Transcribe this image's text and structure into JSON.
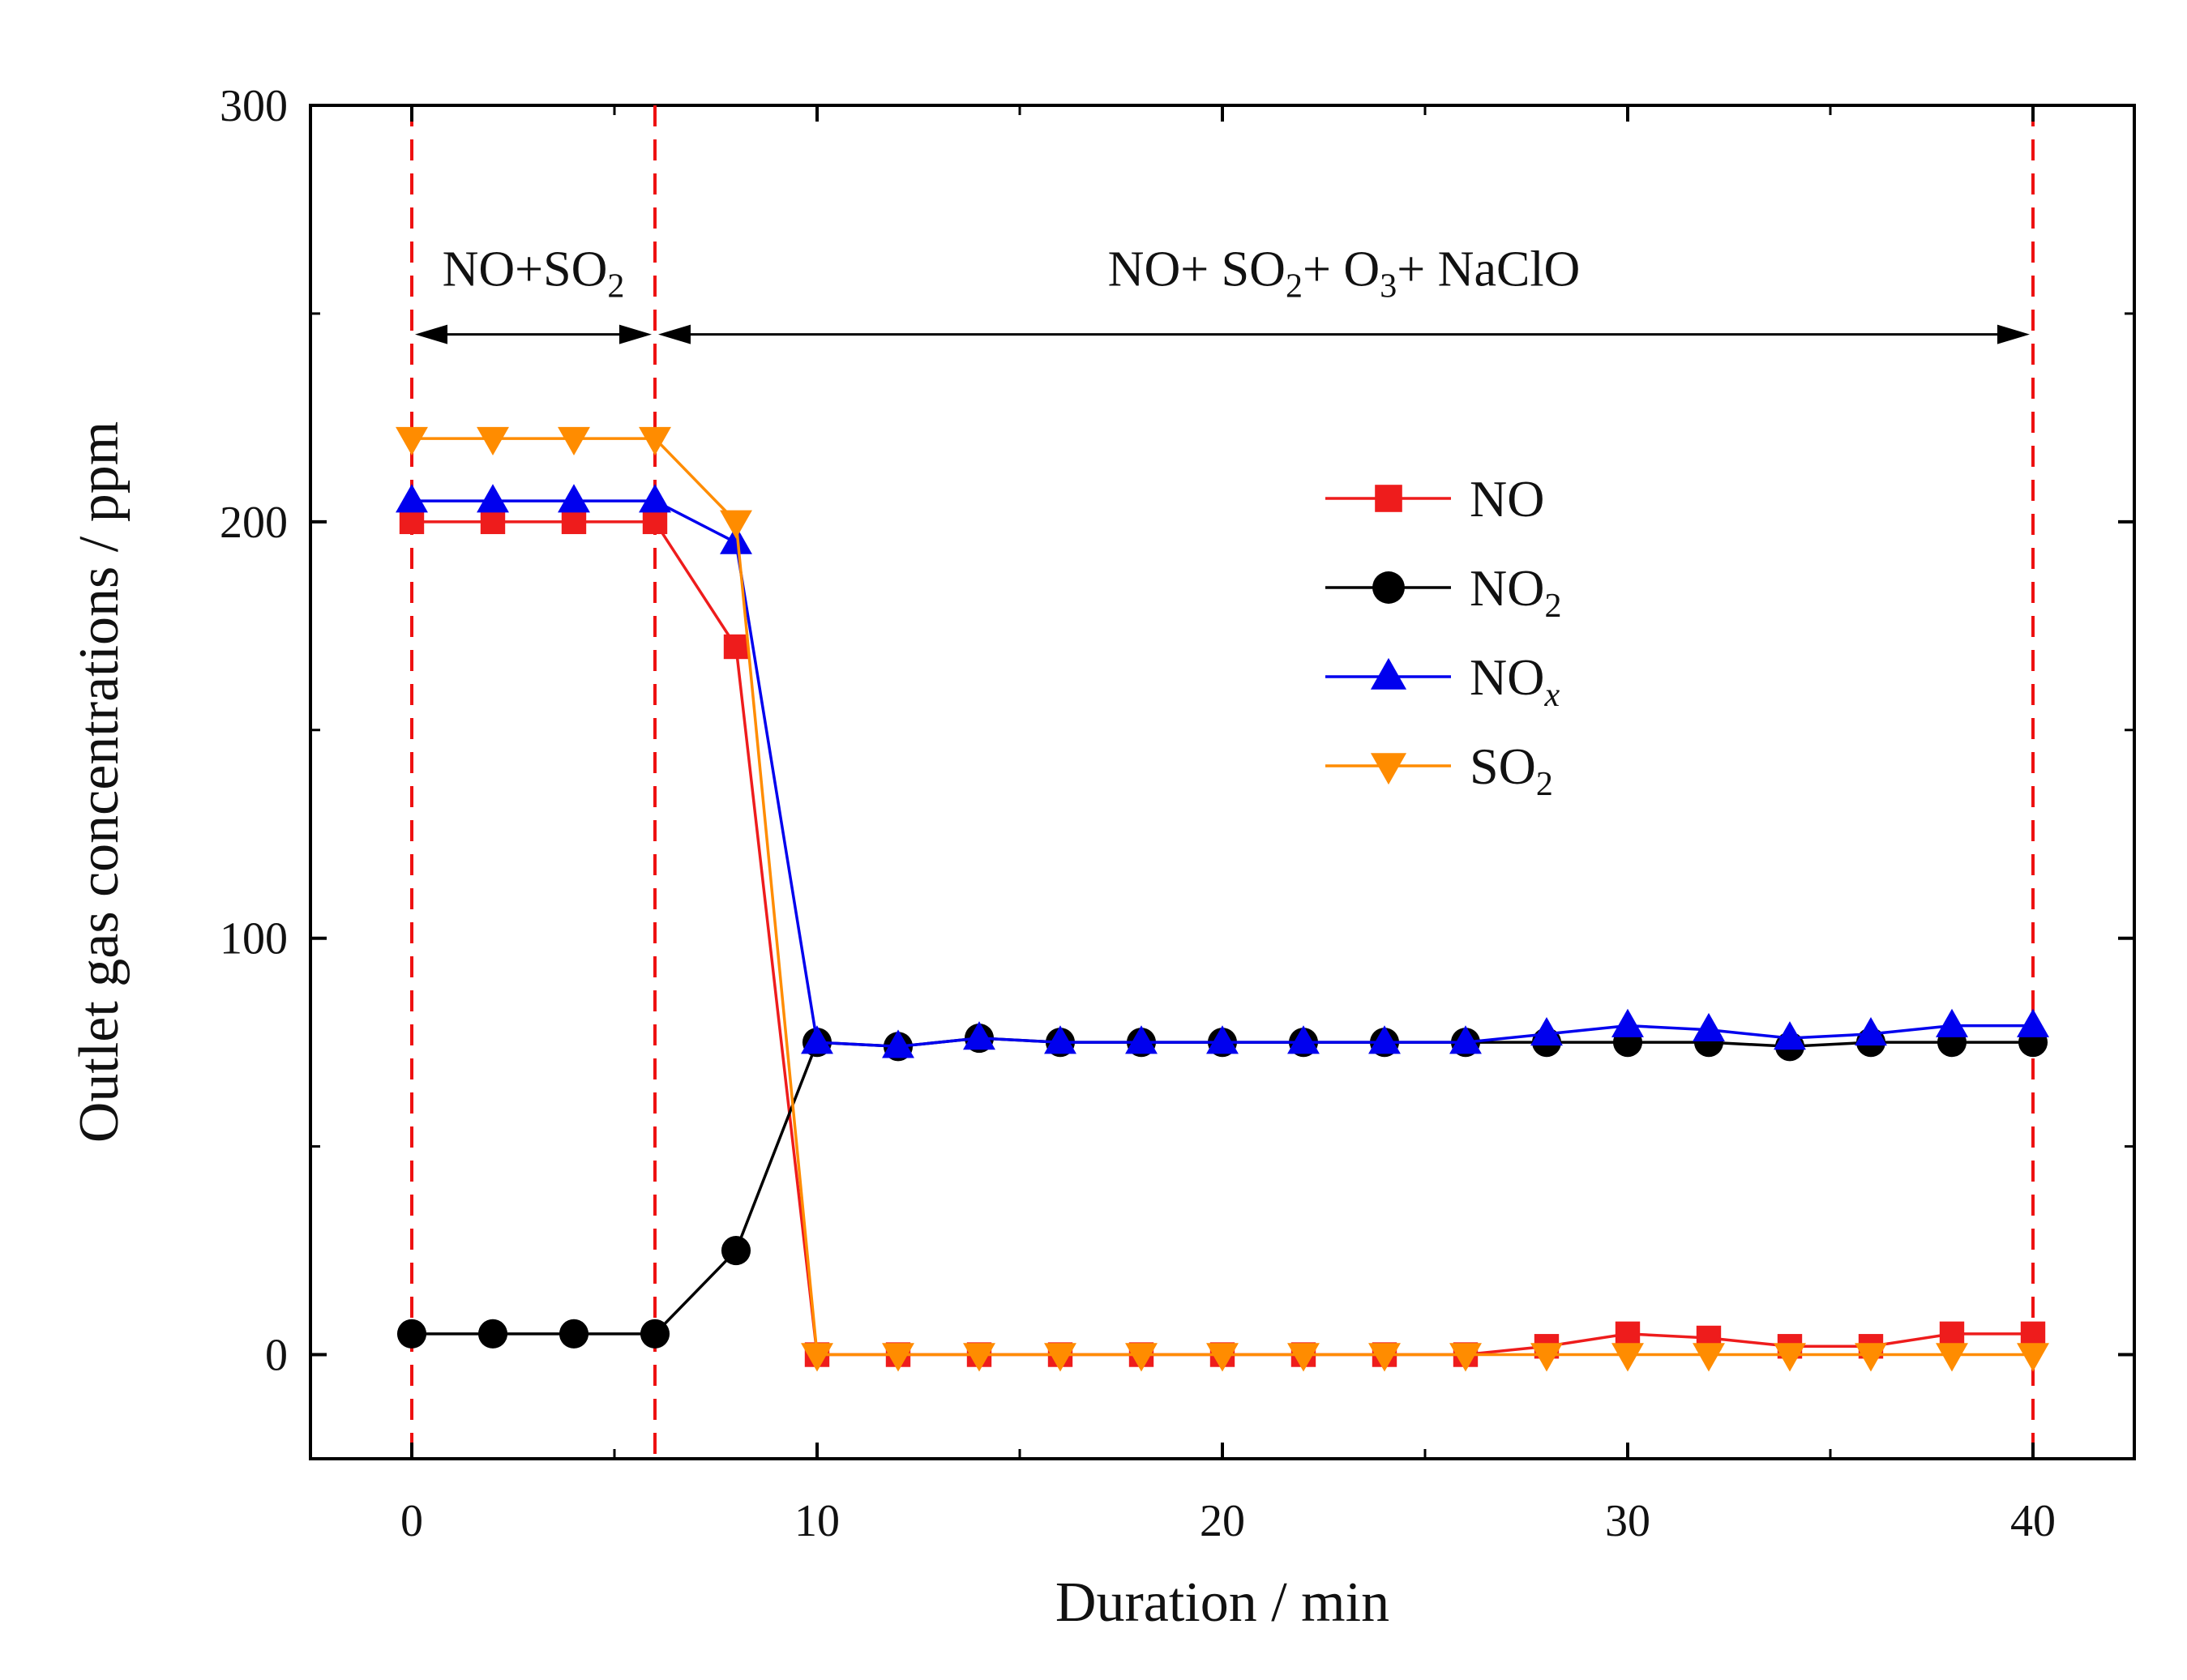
{
  "chart_data": {
    "type": "line",
    "xlabel": "Duration / min",
    "ylabel": "Outlet gas concentrations / ppm",
    "xlim": [
      -2.5,
      42.5
    ],
    "ylim": [
      -25,
      300
    ],
    "xticks": [
      0,
      10,
      20,
      30,
      40
    ],
    "xtick_labels": [
      "0",
      "10",
      "20",
      "30",
      "40"
    ],
    "yticks": [
      0,
      100,
      200,
      300
    ],
    "ytick_labels": [
      "0",
      "100",
      "200",
      "300"
    ],
    "x": [
      0,
      2,
      4,
      6,
      8,
      10,
      12,
      14,
      16,
      18,
      20,
      22,
      24,
      26,
      28,
      30,
      32,
      34,
      36,
      38,
      40
    ],
    "series": [
      {
        "name": "NO",
        "label_main": "NO",
        "label_sub": "",
        "label_sub_italic": false,
        "color": "#ee1c1c",
        "marker": "square",
        "values": [
          200,
          200,
          200,
          200,
          170,
          0,
          0,
          0,
          0,
          0,
          0,
          0,
          0,
          0,
          2,
          5,
          4,
          2,
          2,
          5,
          5
        ]
      },
      {
        "name": "NO2",
        "label_main": "NO",
        "label_sub": "2",
        "label_sub_italic": false,
        "color": "#000000",
        "marker": "circle",
        "values": [
          5,
          5,
          5,
          5,
          25,
          75,
          74,
          76,
          75,
          75,
          75,
          75,
          75,
          75,
          75,
          75,
          75,
          74,
          75,
          75,
          75
        ]
      },
      {
        "name": "NOx",
        "label_main": "NO",
        "label_sub": "x",
        "label_sub_italic": true,
        "color": "#0000ee",
        "marker": "triangle-up",
        "values": [
          205,
          205,
          205,
          205,
          195,
          75,
          74,
          76,
          75,
          75,
          75,
          75,
          75,
          75,
          77,
          79,
          78,
          76,
          77,
          79,
          79
        ]
      },
      {
        "name": "SO2",
        "label_main": "SO",
        "label_sub": "2",
        "label_sub_italic": false,
        "color": "#ff8c00",
        "marker": "triangle-down",
        "values": [
          220,
          220,
          220,
          220,
          200,
          0,
          0,
          0,
          0,
          0,
          0,
          0,
          0,
          0,
          0,
          0,
          0,
          0,
          0,
          0,
          0
        ]
      }
    ],
    "vlines": [
      0,
      6,
      40
    ],
    "vline_color": "#ee1111",
    "legend_position": "upper-right",
    "annotations": [
      {
        "id": "phase1",
        "x_from": 0,
        "x_to": 6,
        "arrow_y": 245,
        "label_parts": [
          "NO+SO",
          "2"
        ]
      },
      {
        "id": "phase2",
        "x_from": 6,
        "x_to": 40,
        "arrow_y": 245,
        "label_parts": [
          "NO+ SO",
          "2",
          "+ O",
          "3",
          "+ NaClO"
        ]
      }
    ]
  }
}
